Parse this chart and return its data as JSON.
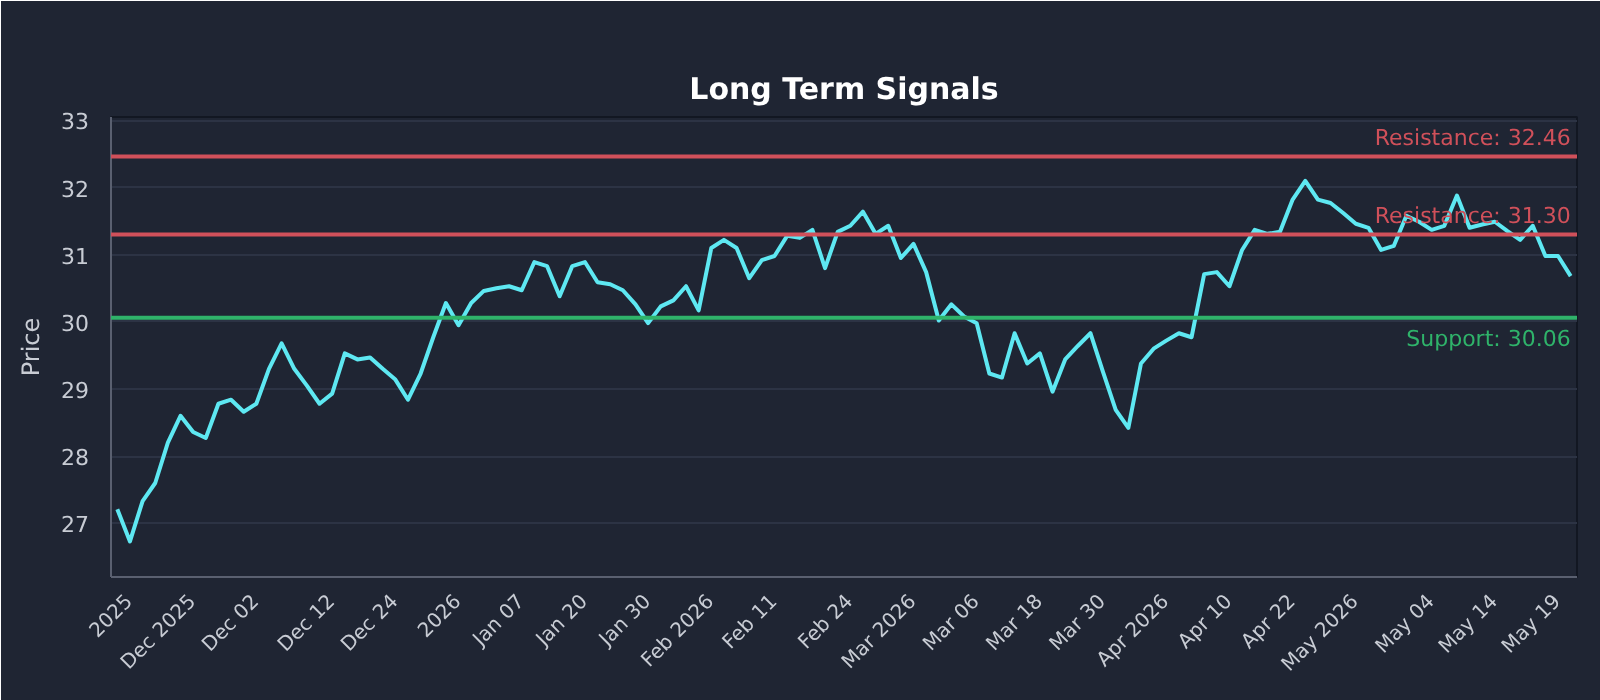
{
  "chart_data": {
    "type": "line",
    "title": "Long Term Signals",
    "ylabel": "Price",
    "categories": [
      null,
      "2025",
      null,
      null,
      null,
      null,
      "Dec 2025",
      null,
      null,
      null,
      null,
      "Dec 02",
      null,
      null,
      null,
      null,
      null,
      "Dec 12",
      null,
      null,
      null,
      null,
      "Dec 24",
      null,
      null,
      null,
      null,
      "2026",
      null,
      null,
      null,
      null,
      "Jan 07",
      null,
      null,
      null,
      null,
      "Jan 20",
      null,
      null,
      null,
      null,
      "Jan 30",
      null,
      null,
      null,
      null,
      "Feb 2026",
      null,
      null,
      null,
      null,
      "Feb 11",
      null,
      null,
      null,
      null,
      null,
      "Feb 24",
      null,
      null,
      null,
      null,
      "Mar 2026",
      null,
      null,
      null,
      null,
      "Mar 06",
      null,
      null,
      null,
      null,
      "Mar 18",
      null,
      null,
      null,
      null,
      "Mar 30",
      null,
      null,
      null,
      null,
      "Apr 2026",
      null,
      null,
      null,
      null,
      "Apr 10",
      null,
      null,
      null,
      null,
      "Apr 22",
      null,
      null,
      null,
      null,
      "May 2026",
      null,
      null,
      null,
      null,
      null,
      "May 04",
      null,
      null,
      null,
      null,
      "May 14",
      null,
      null,
      null,
      null,
      "May 19",
      null
    ],
    "series": [
      {
        "color": "#5ee8f2",
        "values": [
          27.21,
          26.73,
          27.33,
          27.6,
          28.2,
          28.6,
          28.36,
          28.27,
          28.78,
          28.84,
          28.66,
          28.78,
          29.3,
          29.68,
          29.3,
          29.05,
          28.78,
          28.93,
          29.53,
          29.44,
          29.47,
          29.3,
          29.14,
          28.84,
          29.23,
          29.77,
          30.28,
          29.95,
          30.28,
          30.46,
          30.5,
          30.53,
          30.47,
          30.89,
          30.83,
          30.38,
          30.83,
          30.89,
          30.59,
          30.56,
          30.47,
          30.26,
          29.98,
          30.23,
          30.32,
          30.53,
          30.17,
          31.1,
          31.22,
          31.1,
          30.65,
          30.92,
          30.98,
          31.28,
          31.25,
          31.37,
          30.8,
          31.34,
          31.43,
          31.64,
          31.31,
          31.43,
          30.95,
          31.16,
          30.74,
          30.02,
          30.26,
          30.08,
          29.98,
          29.23,
          29.17,
          29.83,
          29.38,
          29.53,
          28.96,
          29.44,
          29.64,
          29.83,
          29.25,
          28.69,
          28.42,
          29.38,
          29.6,
          29.72,
          29.83,
          29.77,
          30.71,
          30.74,
          30.53,
          31.07,
          31.37,
          31.31,
          31.34,
          31.82,
          32.1,
          31.82,
          31.77,
          31.62,
          31.46,
          31.4,
          31.07,
          31.13,
          31.58,
          31.49,
          31.37,
          31.43,
          31.88,
          31.4,
          31.45,
          31.49,
          31.35,
          31.22,
          31.43,
          30.98,
          30.98,
          30.68
        ]
      }
    ],
    "ylim": [
      26.2,
      33.05
    ],
    "yticks": [
      27,
      28,
      29,
      30,
      31,
      32,
      33
    ],
    "grid": "y",
    "ref_lines": [
      {
        "axis": "y",
        "value": 32.46,
        "label": "Resistance: 32.46",
        "color": "#d0505a"
      },
      {
        "axis": "y",
        "value": 31.3,
        "label": "Resistance: 31.30",
        "color": "#d0505a"
      },
      {
        "axis": "y",
        "value": 30.06,
        "label": "Support: 30.06",
        "color": "#2fb36a"
      }
    ]
  }
}
